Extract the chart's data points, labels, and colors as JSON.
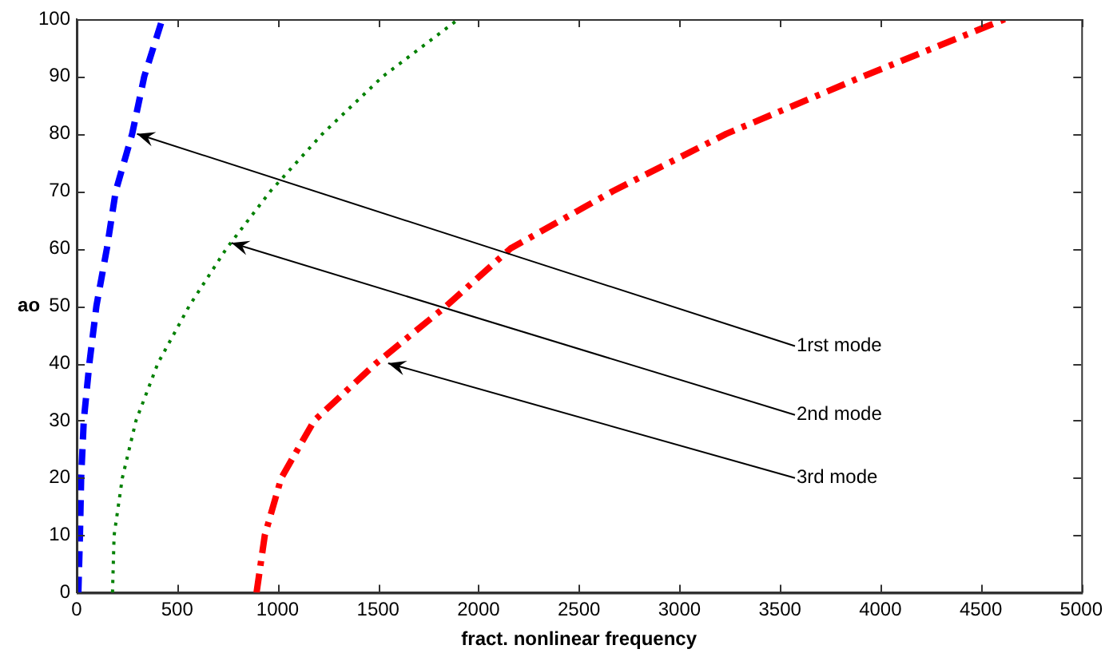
{
  "chart_data": {
    "type": "line",
    "xlabel": "fract. nonlinear frequency",
    "ylabel": "ao",
    "xlim": [
      0,
      5000
    ],
    "xticks": [
      0,
      500,
      1000,
      1500,
      2000,
      2500,
      3000,
      3500,
      4000,
      4500,
      5000
    ],
    "ylim": [
      0,
      100
    ],
    "yticks": [
      0,
      10,
      20,
      30,
      40,
      50,
      60,
      70,
      80,
      90,
      100
    ],
    "marker": "none",
    "series": [
      {
        "color": "#0000ff",
        "line_style": "dashed",
        "x": [
          8,
          16,
          22,
          35,
          63,
          98,
          150,
          194,
          276,
          336,
          426
        ],
        "values": [
          0,
          10,
          20,
          30,
          40,
          50,
          60,
          70,
          80,
          90,
          100
        ]
      },
      {
        "color": "#008000",
        "line_style": "dotted",
        "x": [
          178,
          186,
          227,
          295,
          404,
          560,
          745,
          964,
          1223,
          1523,
          1900
        ],
        "values": [
          0,
          10,
          20,
          30,
          40,
          50,
          60,
          70,
          80,
          90,
          100
        ]
      },
      {
        "color": "#ff0000",
        "line_style": "dashdot",
        "x": [
          895,
          936,
          1018,
          1182,
          1490,
          1840,
          2159,
          2668,
          3233,
          3912,
          4619
        ],
        "values": [
          0,
          10,
          20,
          30,
          40,
          50,
          60,
          70,
          80,
          90,
          100
        ]
      }
    ],
    "annotations": [
      {
        "text": "1rst mode",
        "x": 300,
        "y": 80
      },
      {
        "text": "2nd mode",
        "x": 770,
        "y": 61
      },
      {
        "text": "3rd mode",
        "x": 1550,
        "y": 40
      }
    ]
  }
}
